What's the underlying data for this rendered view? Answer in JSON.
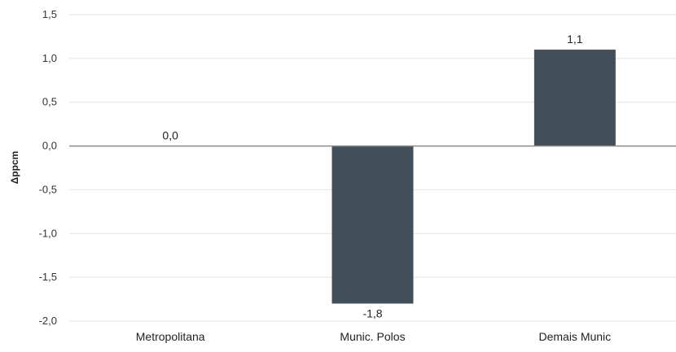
{
  "chart_data": {
    "type": "bar",
    "categories": [
      "Metropolitana",
      "Munic. Polos",
      "Demais Munic"
    ],
    "values": [
      0.0,
      -1.8,
      1.1
    ],
    "data_labels": [
      "0,0",
      "-1,8",
      "1,1"
    ],
    "title": "",
    "xlabel": "",
    "ylabel": "Δppcm",
    "ylim": [
      -2.0,
      1.5
    ],
    "yticks": [
      1.5,
      1.0,
      0.5,
      0.0,
      -0.5,
      -1.0,
      -1.5,
      -2.0
    ],
    "ytick_labels": [
      "1,5",
      "1,0",
      "0,5",
      "0,0",
      "-0,5",
      "-1,0",
      "-1,5",
      "-2,0"
    ],
    "grid": true,
    "legend": "none",
    "bar_color": "#434f58",
    "grid_color": "#e3e3e3",
    "zero_line_color": "#8c8c8c"
  }
}
